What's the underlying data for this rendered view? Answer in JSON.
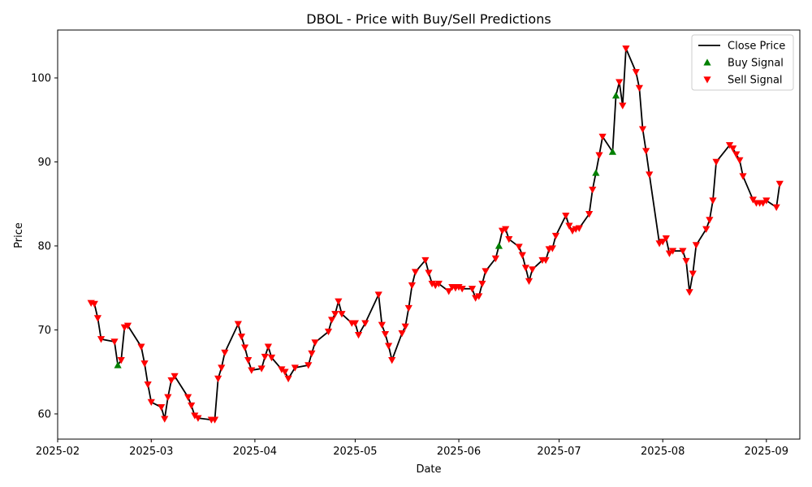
{
  "chart_data": {
    "type": "line",
    "title": "DBOL - Price with Buy/Sell Predictions",
    "xlabel": "Date",
    "ylabel": "Price",
    "xlim": [
      "2025-02-01",
      "2025-09-11"
    ],
    "ylim": [
      57,
      105.7
    ],
    "xticks": [
      "2025-02",
      "2025-03",
      "2025-04",
      "2025-05",
      "2025-06",
      "2025-07",
      "2025-08",
      "2025-09"
    ],
    "xtick_dates": [
      "2025-02-01",
      "2025-03-01",
      "2025-04-01",
      "2025-05-01",
      "2025-06-01",
      "2025-07-01",
      "2025-08-01",
      "2025-09-01"
    ],
    "yticks": [
      60,
      70,
      80,
      90,
      100
    ],
    "grid": false,
    "legend_position": "top-right",
    "colors": {
      "line": "#000000",
      "buy": "#008000",
      "sell": "#ff0000"
    },
    "series": [
      {
        "name": "Close Price",
        "kind": "line",
        "points": [
          [
            "2025-02-11",
            73.2
          ],
          [
            "2025-02-12",
            73.1
          ],
          [
            "2025-02-13",
            71.4
          ],
          [
            "2025-02-14",
            68.9
          ],
          [
            "2025-02-18",
            68.6
          ],
          [
            "2025-02-19",
            65.8
          ],
          [
            "2025-02-20",
            66.4
          ],
          [
            "2025-02-21",
            70.3
          ],
          [
            "2025-02-22",
            70.5
          ],
          [
            "2025-02-26",
            68.0
          ],
          [
            "2025-02-27",
            66.0
          ],
          [
            "2025-02-28",
            63.5
          ],
          [
            "2025-03-01",
            61.4
          ],
          [
            "2025-03-04",
            60.8
          ],
          [
            "2025-03-05",
            59.4
          ],
          [
            "2025-03-06",
            62.0
          ],
          [
            "2025-03-07",
            64.0
          ],
          [
            "2025-03-08",
            64.5
          ],
          [
            "2025-03-12",
            62.0
          ],
          [
            "2025-03-13",
            61.0
          ],
          [
            "2025-03-14",
            59.8
          ],
          [
            "2025-03-15",
            59.5
          ],
          [
            "2025-03-19",
            59.3
          ],
          [
            "2025-03-20",
            59.3
          ],
          [
            "2025-03-21",
            64.2
          ],
          [
            "2025-03-22",
            65.5
          ],
          [
            "2025-03-23",
            67.3
          ],
          [
            "2025-03-27",
            70.7
          ],
          [
            "2025-03-28",
            69.2
          ],
          [
            "2025-03-29",
            67.9
          ],
          [
            "2025-03-30",
            66.4
          ],
          [
            "2025-03-31",
            65.2
          ],
          [
            "2025-04-03",
            65.4
          ],
          [
            "2025-04-04",
            66.8
          ],
          [
            "2025-04-05",
            68.0
          ],
          [
            "2025-04-06",
            66.7
          ],
          [
            "2025-04-09",
            65.3
          ],
          [
            "2025-04-10",
            65.0
          ],
          [
            "2025-04-11",
            64.2
          ],
          [
            "2025-04-13",
            65.5
          ],
          [
            "2025-04-17",
            65.8
          ],
          [
            "2025-04-18",
            67.2
          ],
          [
            "2025-04-19",
            68.5
          ],
          [
            "2025-04-23",
            69.8
          ],
          [
            "2025-04-24",
            71.2
          ],
          [
            "2025-04-25",
            71.9
          ],
          [
            "2025-04-26",
            73.4
          ],
          [
            "2025-04-27",
            71.9
          ],
          [
            "2025-04-30",
            70.8
          ],
          [
            "2025-05-01",
            70.8
          ],
          [
            "2025-05-02",
            69.4
          ],
          [
            "2025-05-04",
            70.8
          ],
          [
            "2025-05-08",
            74.2
          ],
          [
            "2025-05-09",
            70.6
          ],
          [
            "2025-05-10",
            69.5
          ],
          [
            "2025-05-11",
            68.1
          ],
          [
            "2025-05-12",
            66.4
          ],
          [
            "2025-05-15",
            69.6
          ],
          [
            "2025-05-16",
            70.4
          ],
          [
            "2025-05-17",
            72.6
          ],
          [
            "2025-05-18",
            75.3
          ],
          [
            "2025-05-19",
            76.9
          ],
          [
            "2025-05-22",
            78.3
          ],
          [
            "2025-05-23",
            76.8
          ],
          [
            "2025-05-24",
            75.5
          ],
          [
            "2025-05-25",
            75.3
          ],
          [
            "2025-05-26",
            75.5
          ],
          [
            "2025-05-29",
            74.6
          ],
          [
            "2025-05-30",
            75.1
          ],
          [
            "2025-05-31",
            75.0
          ],
          [
            "2025-06-01",
            75.1
          ],
          [
            "2025-06-02",
            74.9
          ],
          [
            "2025-06-05",
            74.9
          ],
          [
            "2025-06-06",
            73.8
          ],
          [
            "2025-06-07",
            74.0
          ],
          [
            "2025-06-08",
            75.5
          ],
          [
            "2025-06-09",
            77.0
          ],
          [
            "2025-06-12",
            78.5
          ],
          [
            "2025-06-13",
            80.0
          ],
          [
            "2025-06-14",
            81.8
          ],
          [
            "2025-06-15",
            82.0
          ],
          [
            "2025-06-16",
            80.8
          ],
          [
            "2025-06-19",
            79.9
          ],
          [
            "2025-06-20",
            78.9
          ],
          [
            "2025-06-21",
            77.4
          ],
          [
            "2025-06-22",
            75.8
          ],
          [
            "2025-06-23",
            77.2
          ],
          [
            "2025-06-26",
            78.3
          ],
          [
            "2025-06-27",
            78.3
          ],
          [
            "2025-06-28",
            79.6
          ],
          [
            "2025-06-29",
            79.7
          ],
          [
            "2025-06-30",
            81.2
          ],
          [
            "2025-07-03",
            83.6
          ],
          [
            "2025-07-04",
            82.4
          ],
          [
            "2025-07-05",
            81.8
          ],
          [
            "2025-07-06",
            82.0
          ],
          [
            "2025-07-07",
            82.1
          ],
          [
            "2025-07-10",
            83.8
          ],
          [
            "2025-07-11",
            86.7
          ],
          [
            "2025-07-12",
            88.7
          ],
          [
            "2025-07-13",
            90.8
          ],
          [
            "2025-07-14",
            93.0
          ],
          [
            "2025-07-17",
            91.2
          ],
          [
            "2025-07-18",
            97.9
          ],
          [
            "2025-07-19",
            99.5
          ],
          [
            "2025-07-20",
            96.7
          ],
          [
            "2025-07-21",
            103.5
          ],
          [
            "2025-07-24",
            100.7
          ],
          [
            "2025-07-25",
            98.8
          ],
          [
            "2025-07-26",
            93.9
          ],
          [
            "2025-07-27",
            91.3
          ],
          [
            "2025-07-28",
            88.5
          ],
          [
            "2025-07-31",
            80.3
          ],
          [
            "2025-08-01",
            80.5
          ],
          [
            "2025-08-02",
            80.9
          ],
          [
            "2025-08-03",
            79.1
          ],
          [
            "2025-08-04",
            79.4
          ],
          [
            "2025-08-07",
            79.4
          ],
          [
            "2025-08-08",
            78.2
          ],
          [
            "2025-08-09",
            74.5
          ],
          [
            "2025-08-10",
            76.7
          ],
          [
            "2025-08-11",
            80.1
          ],
          [
            "2025-08-14",
            82.0
          ],
          [
            "2025-08-15",
            83.1
          ],
          [
            "2025-08-16",
            85.4
          ],
          [
            "2025-08-17",
            90.0
          ],
          [
            "2025-08-21",
            92.0
          ],
          [
            "2025-08-22",
            91.6
          ],
          [
            "2025-08-23",
            90.9
          ],
          [
            "2025-08-24",
            90.2
          ],
          [
            "2025-08-25",
            88.3
          ],
          [
            "2025-08-28",
            85.5
          ],
          [
            "2025-08-29",
            85.1
          ],
          [
            "2025-08-30",
            85.1
          ],
          [
            "2025-08-31",
            85.1
          ],
          [
            "2025-09-01",
            85.4
          ],
          [
            "2025-09-04",
            84.6
          ],
          [
            "2025-09-05",
            87.4
          ]
        ]
      },
      {
        "name": "Buy Signal",
        "kind": "marker",
        "marker": "triangle-up",
        "points": [
          [
            "2025-02-19",
            65.8
          ],
          [
            "2025-06-13",
            80.0
          ],
          [
            "2025-07-12",
            88.7
          ],
          [
            "2025-07-17",
            91.2
          ],
          [
            "2025-07-18",
            97.9
          ]
        ]
      },
      {
        "name": "Sell Signal",
        "kind": "marker",
        "marker": "triangle-down",
        "points": [
          [
            "2025-02-11",
            73.2
          ],
          [
            "2025-02-12",
            73.1
          ],
          [
            "2025-02-13",
            71.4
          ],
          [
            "2025-02-14",
            68.9
          ],
          [
            "2025-02-18",
            68.6
          ],
          [
            "2025-02-20",
            66.4
          ],
          [
            "2025-02-21",
            70.3
          ],
          [
            "2025-02-22",
            70.5
          ],
          [
            "2025-02-26",
            68.0
          ],
          [
            "2025-02-27",
            66.0
          ],
          [
            "2025-02-28",
            63.5
          ],
          [
            "2025-03-01",
            61.4
          ],
          [
            "2025-03-04",
            60.8
          ],
          [
            "2025-03-05",
            59.4
          ],
          [
            "2025-03-06",
            62.0
          ],
          [
            "2025-03-07",
            64.0
          ],
          [
            "2025-03-08",
            64.5
          ],
          [
            "2025-03-12",
            62.0
          ],
          [
            "2025-03-13",
            61.0
          ],
          [
            "2025-03-14",
            59.8
          ],
          [
            "2025-03-15",
            59.5
          ],
          [
            "2025-03-19",
            59.3
          ],
          [
            "2025-03-20",
            59.3
          ],
          [
            "2025-03-21",
            64.2
          ],
          [
            "2025-03-22",
            65.5
          ],
          [
            "2025-03-23",
            67.3
          ],
          [
            "2025-03-27",
            70.7
          ],
          [
            "2025-03-28",
            69.2
          ],
          [
            "2025-03-29",
            67.9
          ],
          [
            "2025-03-30",
            66.4
          ],
          [
            "2025-03-31",
            65.2
          ],
          [
            "2025-04-03",
            65.4
          ],
          [
            "2025-04-04",
            66.8
          ],
          [
            "2025-04-05",
            68.0
          ],
          [
            "2025-04-06",
            66.7
          ],
          [
            "2025-04-09",
            65.3
          ],
          [
            "2025-04-10",
            65.0
          ],
          [
            "2025-04-11",
            64.2
          ],
          [
            "2025-04-13",
            65.5
          ],
          [
            "2025-04-17",
            65.8
          ],
          [
            "2025-04-18",
            67.2
          ],
          [
            "2025-04-19",
            68.5
          ],
          [
            "2025-04-23",
            69.8
          ],
          [
            "2025-04-24",
            71.2
          ],
          [
            "2025-04-25",
            71.9
          ],
          [
            "2025-04-26",
            73.4
          ],
          [
            "2025-04-27",
            71.9
          ],
          [
            "2025-04-30",
            70.8
          ],
          [
            "2025-05-01",
            70.8
          ],
          [
            "2025-05-02",
            69.4
          ],
          [
            "2025-05-04",
            70.8
          ],
          [
            "2025-05-08",
            74.2
          ],
          [
            "2025-05-09",
            70.6
          ],
          [
            "2025-05-10",
            69.5
          ],
          [
            "2025-05-11",
            68.1
          ],
          [
            "2025-05-12",
            66.4
          ],
          [
            "2025-05-15",
            69.6
          ],
          [
            "2025-05-16",
            70.4
          ],
          [
            "2025-05-17",
            72.6
          ],
          [
            "2025-05-18",
            75.3
          ],
          [
            "2025-05-19",
            76.9
          ],
          [
            "2025-05-22",
            78.3
          ],
          [
            "2025-05-23",
            76.8
          ],
          [
            "2025-05-24",
            75.5
          ],
          [
            "2025-05-25",
            75.3
          ],
          [
            "2025-05-26",
            75.5
          ],
          [
            "2025-05-29",
            74.6
          ],
          [
            "2025-05-30",
            75.1
          ],
          [
            "2025-05-31",
            75.0
          ],
          [
            "2025-06-01",
            75.1
          ],
          [
            "2025-06-02",
            74.9
          ],
          [
            "2025-06-05",
            74.9
          ],
          [
            "2025-06-06",
            73.8
          ],
          [
            "2025-06-07",
            74.0
          ],
          [
            "2025-06-08",
            75.5
          ],
          [
            "2025-06-09",
            77.0
          ],
          [
            "2025-06-12",
            78.5
          ],
          [
            "2025-06-14",
            81.8
          ],
          [
            "2025-06-15",
            82.0
          ],
          [
            "2025-06-16",
            80.8
          ],
          [
            "2025-06-19",
            79.9
          ],
          [
            "2025-06-20",
            78.9
          ],
          [
            "2025-06-21",
            77.4
          ],
          [
            "2025-06-22",
            75.8
          ],
          [
            "2025-06-23",
            77.2
          ],
          [
            "2025-06-26",
            78.3
          ],
          [
            "2025-06-27",
            78.3
          ],
          [
            "2025-06-28",
            79.6
          ],
          [
            "2025-06-29",
            79.7
          ],
          [
            "2025-06-30",
            81.2
          ],
          [
            "2025-07-03",
            83.6
          ],
          [
            "2025-07-04",
            82.4
          ],
          [
            "2025-07-05",
            81.8
          ],
          [
            "2025-07-06",
            82.0
          ],
          [
            "2025-07-07",
            82.1
          ],
          [
            "2025-07-10",
            83.8
          ],
          [
            "2025-07-11",
            86.7
          ],
          [
            "2025-07-13",
            90.8
          ],
          [
            "2025-07-14",
            93.0
          ],
          [
            "2025-07-19",
            99.5
          ],
          [
            "2025-07-20",
            96.7
          ],
          [
            "2025-07-21",
            103.5
          ],
          [
            "2025-07-24",
            100.7
          ],
          [
            "2025-07-25",
            98.8
          ],
          [
            "2025-07-26",
            93.9
          ],
          [
            "2025-07-27",
            91.3
          ],
          [
            "2025-07-28",
            88.5
          ],
          [
            "2025-07-31",
            80.3
          ],
          [
            "2025-08-01",
            80.5
          ],
          [
            "2025-08-02",
            80.9
          ],
          [
            "2025-08-03",
            79.1
          ],
          [
            "2025-08-04",
            79.4
          ],
          [
            "2025-08-07",
            79.4
          ],
          [
            "2025-08-08",
            78.2
          ],
          [
            "2025-08-09",
            74.5
          ],
          [
            "2025-08-10",
            76.7
          ],
          [
            "2025-08-11",
            80.1
          ],
          [
            "2025-08-14",
            82.0
          ],
          [
            "2025-08-15",
            83.1
          ],
          [
            "2025-08-16",
            85.4
          ],
          [
            "2025-08-17",
            90.0
          ],
          [
            "2025-08-21",
            92.0
          ],
          [
            "2025-08-22",
            91.6
          ],
          [
            "2025-08-23",
            90.9
          ],
          [
            "2025-08-24",
            90.2
          ],
          [
            "2025-08-25",
            88.3
          ],
          [
            "2025-08-28",
            85.5
          ],
          [
            "2025-08-29",
            85.1
          ],
          [
            "2025-08-30",
            85.1
          ],
          [
            "2025-08-31",
            85.1
          ],
          [
            "2025-09-01",
            85.4
          ],
          [
            "2025-09-04",
            84.6
          ],
          [
            "2025-09-05",
            87.4
          ]
        ]
      }
    ]
  }
}
